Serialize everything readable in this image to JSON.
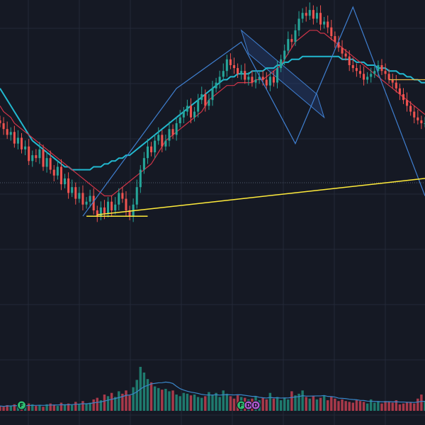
{
  "colors": {
    "background": "#151924",
    "grid": "#232938",
    "bull": "#26a69a",
    "bear": "#ef5350",
    "bull_volume": "#1f7a6e",
    "bear_volume": "#a8394a",
    "ma_long": "#22b8cf",
    "ma_short": "#d03448",
    "volume_ma": "#3a86c8",
    "trendline": "#ffeb3b",
    "resistance": "#e6b84a",
    "pattern_line": "#3f7fd0",
    "channel_fill": "#2a4a8c",
    "midline": "#4f5a6e",
    "badge_green": "#2fbf71",
    "badge_purple": "#b05ad0"
  },
  "chart_data": {
    "type": "candlestick",
    "title": "",
    "xlabel": "",
    "ylabel": "",
    "ylim": [
      0,
      100
    ],
    "volume_ylim": [
      0,
      100
    ],
    "grid": true,
    "ma_long_period": "long",
    "ma_short_period": "short",
    "x": [
      0,
      1,
      2,
      3,
      4,
      5,
      6,
      7,
      8,
      9,
      10,
      11,
      12,
      13,
      14,
      15,
      16,
      17,
      18,
      19,
      20,
      21,
      22,
      23,
      24,
      25,
      26,
      27,
      28,
      29,
      30,
      31,
      32,
      33,
      34,
      35,
      36,
      37,
      38,
      39,
      40,
      41,
      42,
      43,
      44,
      45,
      46,
      47,
      48,
      49,
      50,
      51,
      52,
      53,
      54,
      55,
      56,
      57,
      58,
      59,
      60,
      61,
      62,
      63,
      64,
      65,
      66,
      67,
      68,
      69,
      70,
      71,
      72,
      73,
      74,
      75,
      76,
      77,
      78,
      79,
      80,
      81,
      82,
      83,
      84,
      85,
      86,
      87,
      88,
      89,
      90,
      91,
      92,
      93,
      94,
      95,
      96,
      97,
      98,
      99,
      100,
      101,
      102,
      103,
      104,
      105,
      106,
      107,
      108,
      109,
      110,
      111,
      112,
      113,
      114,
      115,
      116,
      117,
      118
    ],
    "close": [
      60,
      58,
      56,
      57,
      53,
      55,
      51,
      52,
      47,
      49,
      48,
      51,
      45,
      48,
      44,
      42,
      45,
      39,
      41,
      36,
      38,
      34,
      36,
      32,
      33,
      35,
      30,
      28,
      31,
      29,
      33,
      30,
      32,
      36,
      34,
      30,
      28,
      32,
      38,
      44,
      48,
      52,
      50,
      54,
      56,
      52,
      54,
      58,
      56,
      60,
      62,
      64,
      66,
      62,
      64,
      68,
      70,
      66,
      68,
      72,
      74,
      76,
      78,
      82,
      80,
      79,
      77,
      78,
      75,
      76,
      74,
      75,
      76,
      75,
      73,
      76,
      74,
      79,
      82,
      85,
      89,
      88,
      92,
      96,
      98,
      97,
      99,
      96,
      98,
      94,
      95,
      93,
      90,
      88,
      86,
      84,
      83,
      80,
      79,
      78,
      77,
      75,
      76,
      77,
      78,
      80,
      78,
      77,
      75,
      74,
      72,
      70,
      68,
      66,
      64,
      62,
      61,
      60,
      60
    ],
    "volume": [
      6,
      5,
      7,
      6,
      8,
      5,
      6,
      7,
      9,
      8,
      6,
      7,
      5,
      8,
      9,
      7,
      6,
      10,
      8,
      9,
      7,
      11,
      8,
      12,
      9,
      10,
      14,
      16,
      13,
      20,
      18,
      22,
      17,
      24,
      21,
      25,
      19,
      29,
      38,
      54,
      47,
      39,
      35,
      30,
      28,
      26,
      27,
      24,
      25,
      20,
      18,
      22,
      21,
      19,
      20,
      17,
      16,
      18,
      23,
      20,
      22,
      17,
      25,
      21,
      18,
      15,
      19,
      17,
      16,
      14,
      15,
      18,
      13,
      16,
      14,
      22,
      15,
      17,
      13,
      16,
      14,
      24,
      19,
      21,
      25,
      17,
      15,
      18,
      14,
      16,
      19,
      13,
      17,
      15,
      12,
      14,
      12,
      11,
      10,
      13,
      12,
      11,
      9,
      14,
      10,
      12,
      9,
      12,
      11,
      10,
      13,
      8,
      9,
      11,
      10,
      9,
      15,
      20,
      12
    ],
    "ma_long": [
      72,
      70,
      68,
      66,
      64,
      62,
      60,
      58,
      56,
      54,
      53,
      52,
      51,
      50,
      49,
      48,
      47,
      46,
      45,
      45,
      44,
      44,
      44,
      44,
      44,
      44,
      45,
      45,
      45,
      46,
      46,
      47,
      47,
      48,
      48,
      49,
      49,
      50,
      51,
      52,
      53,
      54,
      55,
      56,
      57,
      58,
      59,
      60,
      61,
      62,
      63,
      64,
      65,
      66,
      67,
      68,
      69,
      70,
      71,
      72,
      73,
      74,
      75,
      75,
      76,
      76,
      77,
      77,
      77,
      77,
      78,
      78,
      78,
      78,
      79,
      79,
      79,
      80,
      80,
      81,
      81,
      82,
      82,
      82,
      83,
      83,
      83,
      83,
      83,
      83,
      83,
      83,
      83,
      83,
      83,
      82,
      82,
      82,
      82,
      81,
      81,
      81,
      80,
      80,
      80,
      79,
      79,
      79,
      78,
      78,
      78,
      77,
      77,
      76,
      76,
      75,
      75,
      74,
      74
    ],
    "ma_short": [
      66,
      64,
      63,
      62,
      60,
      59,
      58,
      57,
      56,
      55,
      54,
      53,
      52,
      51,
      50,
      49,
      48,
      47,
      46,
      45,
      44,
      43,
      42,
      41,
      40,
      39,
      38,
      37,
      36,
      35,
      35,
      35,
      36,
      37,
      38,
      39,
      40,
      41,
      42,
      43,
      44,
      45,
      46,
      48,
      50,
      52,
      54,
      55,
      56,
      57,
      58,
      59,
      60,
      61,
      62,
      63,
      64,
      66,
      68,
      69,
      70,
      71,
      72,
      73,
      73,
      73,
      74,
      74,
      74,
      74,
      74,
      75,
      75,
      75,
      76,
      77,
      78,
      79,
      80,
      82,
      84,
      86,
      88,
      89,
      90,
      91,
      92,
      92,
      92,
      91,
      91,
      90,
      89,
      88,
      87,
      86,
      85,
      84,
      83,
      82,
      81,
      80,
      79,
      78,
      77,
      76,
      75,
      74,
      73,
      72,
      71,
      70,
      69,
      68,
      67,
      66,
      65,
      64,
      63
    ],
    "annotations": {
      "support_trendline": [
        [
          27,
          28.5
        ],
        [
          118,
          41
        ]
      ],
      "bottom_line": [
        [
          24,
          28
        ],
        [
          41,
          28
        ]
      ],
      "resistance_line": [
        [
          108,
          75
        ],
        [
          118,
          75
        ]
      ],
      "harmonic_pattern": [
        [
          23,
          28
        ],
        [
          49,
          72
        ],
        [
          67,
          88
        ],
        [
          82,
          53
        ],
        [
          98,
          100
        ],
        [
          118,
          35
        ]
      ],
      "channel": [
        [
          67,
          92
        ],
        [
          88,
          70
        ],
        [
          90,
          62
        ],
        [
          69,
          84
        ]
      ]
    },
    "event_badges": [
      {
        "index": 6,
        "label": "F",
        "color": "green"
      },
      {
        "index": 67,
        "label": "F",
        "color": "green"
      },
      {
        "index": 69,
        "label": "D",
        "color": "purple"
      },
      {
        "index": 71,
        "label": "D",
        "color": "purple"
      }
    ]
  }
}
